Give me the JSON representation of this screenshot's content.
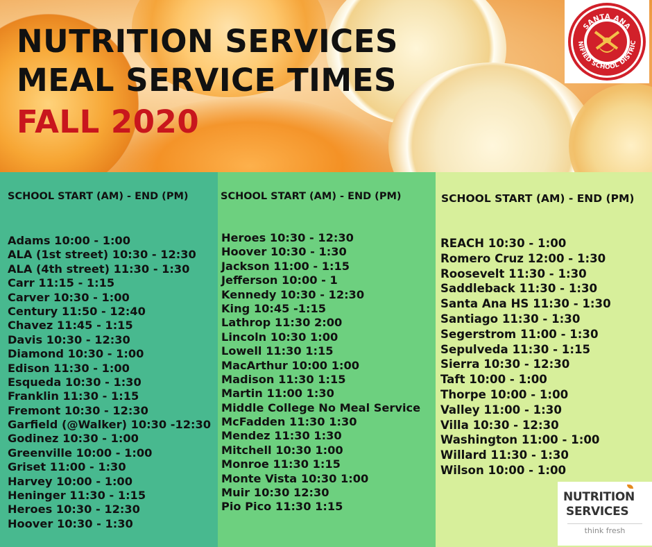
{
  "title": {
    "line1": "NUTRITION SERVICES",
    "line2": "MEAL SERVICE TIMES",
    "line3": "FALL 2020"
  },
  "colors": {
    "title_accent": "#c8161d",
    "col1_bg": "#48b98f",
    "col2_bg": "#6dd07f",
    "col3_bg": "#d7ef9b"
  },
  "district_logo": {
    "icon": "santa-ana-usd-seal",
    "top_text": "SANTA ANA",
    "bottom_text": "UNIFIED SCHOOL DISTRICT"
  },
  "columns": [
    {
      "header": "SCHOOL START (AM) - END (PM)",
      "schools": [
        "Adams 10:00 - 1:00",
        "ALA (1st street) 10:30 - 12:30",
        "ALA (4th street)  11:30  - 1:30",
        "Carr  11:15 - 1:15",
        "Carver  10:30 - 1:00",
        "Century 11:50 - 12:40",
        "Chavez 11:45 - 1:15",
        "Davis 10:30 - 12:30",
        "Diamond  10:30 - 1:00",
        "Edison 11:30 - 1:00",
        "Esqueda 10:30 - 1:30",
        "Franklin 11:30 - 1:15",
        "Fremont 10:30 - 12:30",
        "Garfield (@Walker) 10:30 -12:30",
        "Godinez 10:30 - 1:00",
        "Greenville 10:00 - 1:00",
        "Griset 11:00 - 1:30",
        "Harvey  10:00 - 1:00",
        "Heninger 11:30 - 1:15",
        "Heroes 10:30 - 12:30",
        "Hoover 10:30 - 1:30"
      ]
    },
    {
      "header": "SCHOOL START (AM) - END (PM)",
      "schools": [
        "Heroes 10:30 - 12:30",
        "Hoover 10:30 - 1:30",
        "Jackson  11:00 - 1:15",
        "Jefferson  10:00 - 1",
        "Kennedy 10:30 - 12:30",
        "King 10:45 -1:15",
        "Lathrop 11:30 2:00",
        "Lincoln  10:30 1:00",
        "Lowell 11:30 1:15",
        "MacArthur  10:00 1:00",
        "Madison 11:30 1:15",
        "Martin  11:00 1:30",
        "Middle College No Meal Service",
        "McFadden 11:30 1:30",
        "Mendez 11:30 1:30",
        "Mitchell 10:30 1:00",
        "Monroe 11:30 1:15",
        "Monte Vista 10:30 1:00",
        "Muir 10:30 12:30",
        "Pio Pico 11:30 1:15"
      ]
    },
    {
      "header": "SCHOOL START (AM) - END (PM)",
      "schools": [
        "REACH  10:30 - 1:00",
        "Romero Cruz 12:00 - 1:30",
        "Roosevelt 11:30 - 1:30",
        "Saddleback 11:30 - 1:30",
        "Santa Ana HS 11:30 - 1:30",
        "Santiago 11:30 - 1:30",
        "Segerstrom  11:00 - 1:30",
        "Sepulveda 11:30 - 1:15",
        "Sierra 10:30 - 12:30",
        "Taft  10:00 - 1:00",
        "Thorpe  10:00 - 1:00",
        "Valley  11:00 - 1:30",
        "Villa 10:30 - 12:30",
        "Washington  11:00 - 1:00",
        "Willard 11:30 - 1:30",
        "Wilson 10:00 - 1:00"
      ]
    }
  ],
  "ns_logo": {
    "line1": "NUTRITION",
    "line2": "SERVICES",
    "tagline": "think fresh"
  }
}
